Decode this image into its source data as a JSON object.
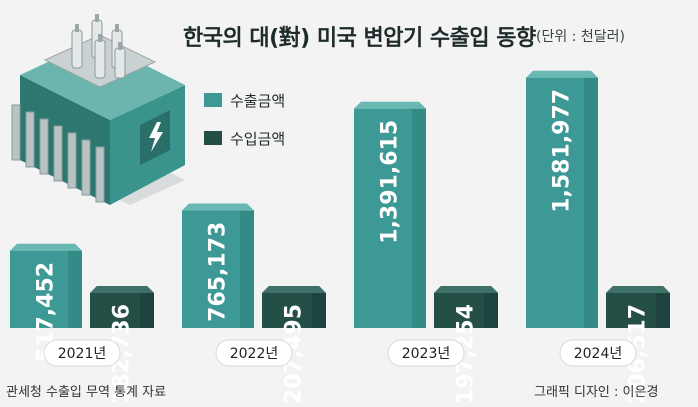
{
  "title": "한국의 대(對) 미국 변압기 수출입 동향",
  "unit": "(단위 : 천달러)",
  "source": "관세청 수출입 무역 통계 자료",
  "credit": "그래픽 디자인 : 이은경",
  "colors": {
    "export_front": "#3d9995",
    "export_side": "#2d7d79",
    "export_top": "#6ab8b3",
    "import_front": "#234f47",
    "import_side": "#173a34",
    "import_top": "#3e7168",
    "axis_pill": "#ffffff"
  },
  "chart_data": {
    "type": "bar",
    "categories": [
      "2021년",
      "2022년",
      "2023년",
      "2024년"
    ],
    "series": [
      {
        "name": "수출금액",
        "values": [
          517452,
          765173,
          1391615,
          1581977
        ]
      },
      {
        "name": "수입금액",
        "values": [
          182736,
          207495,
          197254,
          206517
        ]
      }
    ],
    "data_labels": {
      "수출금액": [
        "517,452",
        "765,173",
        "1,391,615",
        "1,581,977"
      ],
      "수입금액": [
        "182,736",
        "207,495",
        "197,254",
        "206,517"
      ]
    },
    "ylim": [
      0,
      1600000
    ],
    "legend_position": "top-left"
  }
}
